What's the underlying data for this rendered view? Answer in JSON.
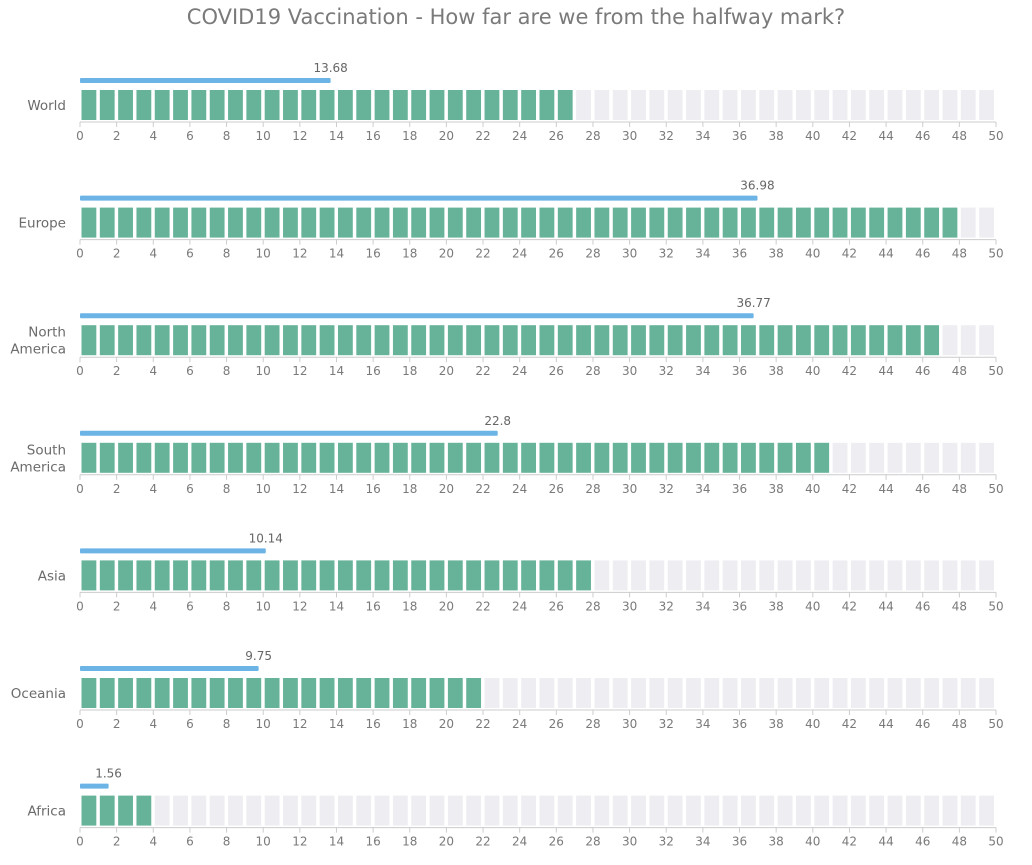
{
  "chart_data": {
    "type": "bar",
    "title": "COVID19 Vaccination - How far are we from the halfway mark?",
    "xlim": [
      0,
      50
    ],
    "x_ticks": [
      "0",
      "2",
      "4",
      "6",
      "8",
      "10",
      "12",
      "14",
      "16",
      "18",
      "20",
      "22",
      "24",
      "26",
      "28",
      "30",
      "32",
      "34",
      "36",
      "38",
      "40",
      "42",
      "44",
      "46",
      "48",
      "50"
    ],
    "categories": [
      {
        "lines": [
          "World"
        ],
        "value": 13.68,
        "value_label": "13.68",
        "filled_units": 27
      },
      {
        "lines": [
          "Europe"
        ],
        "value": 36.98,
        "value_label": "36.98",
        "filled_units": 48
      },
      {
        "lines": [
          "North",
          "America"
        ],
        "value": 36.77,
        "value_label": "36.77",
        "filled_units": 47
      },
      {
        "lines": [
          "South",
          "America"
        ],
        "value": 22.8,
        "value_label": "22.8",
        "filled_units": 41
      },
      {
        "lines": [
          "Asia"
        ],
        "value": 10.14,
        "value_label": "10.14",
        "filled_units": 28
      },
      {
        "lines": [
          "Oceania"
        ],
        "value": 9.75,
        "value_label": "9.75",
        "filled_units": 22
      },
      {
        "lines": [
          "Africa"
        ],
        "value": 1.56,
        "value_label": "1.56",
        "filled_units": 4
      }
    ],
    "colors": {
      "value_bar": "#6cb3e6",
      "filled_block": "#66b39a",
      "empty_block": "#eeedf1",
      "axis": "#cccccc",
      "title_text": "#7a7a7a",
      "label_text": "#6b6b6b"
    },
    "grid": false,
    "legend": "none"
  }
}
